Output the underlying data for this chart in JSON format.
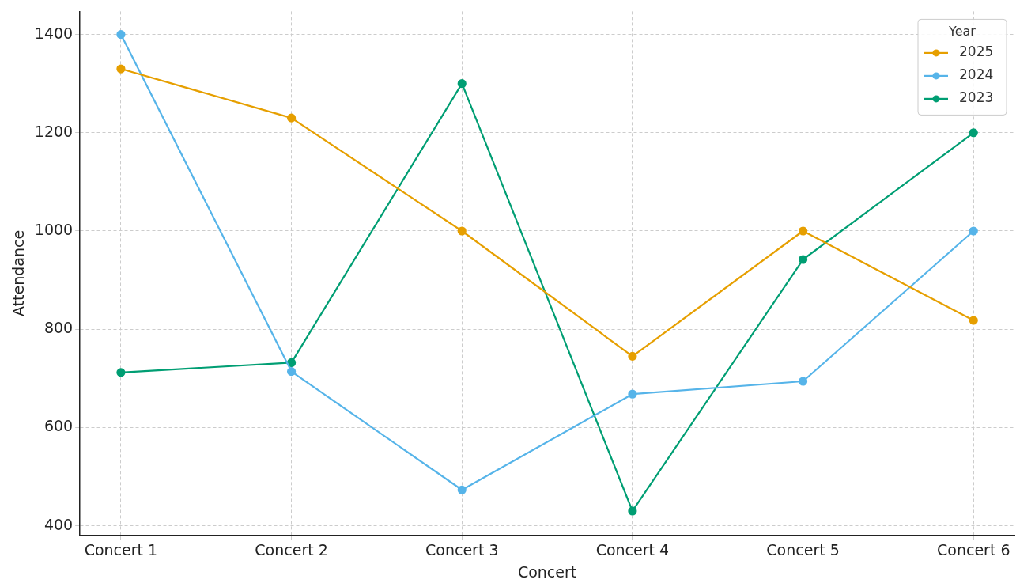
{
  "chart_data": {
    "type": "line",
    "xlabel": "Concert",
    "ylabel": "Attendance",
    "legend_title": "Year",
    "categories": [
      "Concert 1",
      "Concert 2",
      "Concert 3",
      "Concert 4",
      "Concert 5",
      "Concert 6"
    ],
    "series": [
      {
        "name": "2025",
        "color": "#e69f00",
        "values": [
          1330,
          1230,
          1000,
          745,
          1000,
          818
        ]
      },
      {
        "name": "2024",
        "color": "#56b4e9",
        "values": [
          1400,
          714,
          473,
          668,
          694,
          1000
        ]
      },
      {
        "name": "2023",
        "color": "#009e73",
        "values": [
          712,
          732,
          1300,
          430,
          942,
          1200
        ]
      }
    ],
    "ylim": [
      381,
      1447
    ],
    "yticks": [
      400,
      600,
      800,
      1000,
      1200,
      1400
    ],
    "grid": true,
    "legend": "top right",
    "marker": "circle",
    "line_style": "solid"
  }
}
